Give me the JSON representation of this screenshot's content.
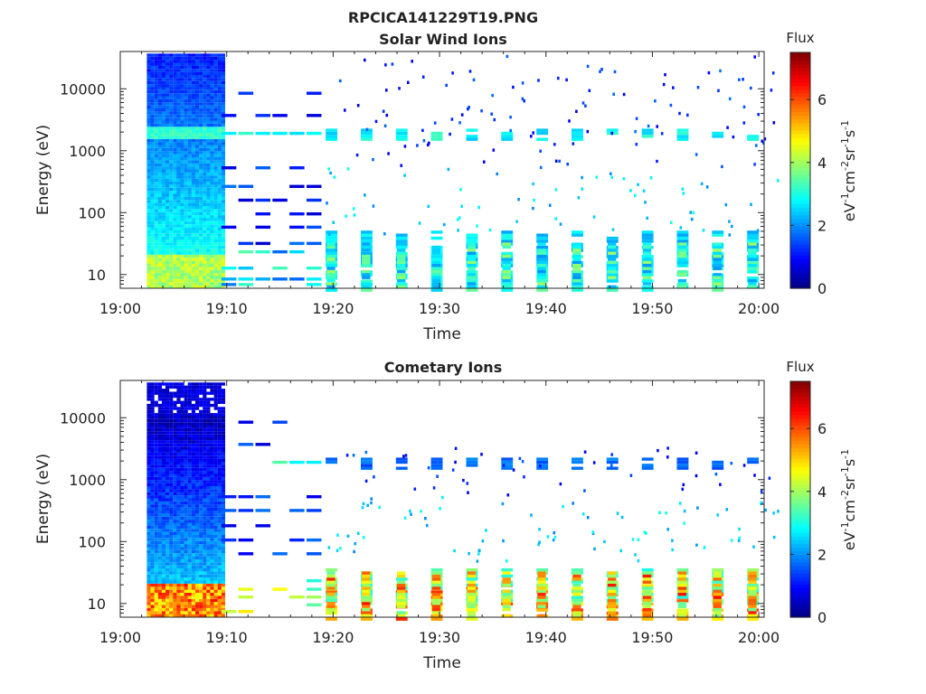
{
  "figure": {
    "title": "RPCICA141229T19.PNG"
  },
  "chart_data": [
    {
      "type": "heatmap",
      "title": "Solar Wind Ions",
      "xlabel": "Time",
      "ylabel": "Energy (eV)",
      "x_ticks": [
        "19:00",
        "19:10",
        "19:20",
        "19:30",
        "19:40",
        "19:50",
        "20:00"
      ],
      "xlim_minutes": [
        0,
        60.5
      ],
      "y_scale": "log",
      "y_ticks": [
        "10",
        "100",
        "1000",
        "10000"
      ],
      "ylim": [
        6,
        40000
      ],
      "colorbar": {
        "title": "Flux",
        "label_main": "eV",
        "label_units": "cm",
        "label_tail": "sr",
        "label_end": "s",
        "exponent": "-1",
        "exponent2": "-2",
        "range": [
          0,
          7.5
        ],
        "ticks": [
          "0",
          "2",
          "4",
          "6"
        ],
        "colormap": "jet"
      },
      "bands": [
        {
          "energy": 1800,
          "peak": 3.3
        },
        {
          "energy": 10,
          "peak": 3.6
        },
        {
          "energy": 25,
          "peak": 3.0
        }
      ]
    },
    {
      "type": "heatmap",
      "title": "Cometary Ions",
      "xlabel": "Time",
      "ylabel": "Energy (eV)",
      "x_ticks": [
        "19:00",
        "19:10",
        "19:20",
        "19:30",
        "19:40",
        "19:50",
        "20:00"
      ],
      "xlim_minutes": [
        0,
        60.5
      ],
      "y_scale": "log",
      "y_ticks": [
        "10",
        "100",
        "1000",
        "10000"
      ],
      "ylim": [
        6,
        40000
      ],
      "colorbar": {
        "title": "Flux",
        "label_main": "eV",
        "label_units": "cm",
        "label_tail": "sr",
        "label_end": "s",
        "exponent": "-1",
        "exponent2": "-2",
        "range": [
          0,
          7.5
        ],
        "ticks": [
          "0",
          "2",
          "4",
          "6"
        ],
        "colormap": "jet"
      },
      "bands": [
        {
          "energy": 10,
          "peak": 6.3
        },
        {
          "energy": 18,
          "peak": 4.2
        },
        {
          "energy": 1800,
          "peak": 2.0
        }
      ]
    }
  ]
}
